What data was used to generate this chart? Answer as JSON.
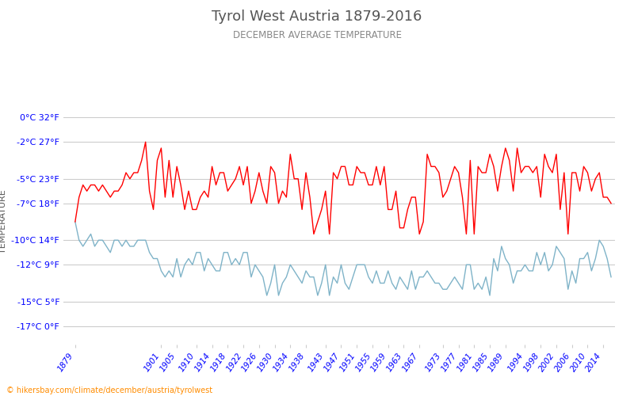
{
  "title": "Tyrol West Austria 1879-2016",
  "subtitle": "DECEMBER AVERAGE TEMPERATURE",
  "ylabel": "TEMPERATURE",
  "xlabel_url": "hikersbay.com/climate/december/austria/tyrolwest",
  "years": [
    1879,
    1880,
    1881,
    1882,
    1883,
    1884,
    1885,
    1886,
    1887,
    1888,
    1889,
    1890,
    1891,
    1892,
    1893,
    1894,
    1895,
    1896,
    1897,
    1898,
    1899,
    1900,
    1901,
    1902,
    1903,
    1904,
    1905,
    1906,
    1907,
    1908,
    1909,
    1910,
    1911,
    1912,
    1913,
    1914,
    1915,
    1916,
    1917,
    1918,
    1919,
    1920,
    1921,
    1922,
    1923,
    1924,
    1925,
    1926,
    1927,
    1928,
    1929,
    1930,
    1931,
    1932,
    1933,
    1934,
    1935,
    1936,
    1937,
    1938,
    1939,
    1940,
    1941,
    1942,
    1943,
    1944,
    1945,
    1946,
    1947,
    1948,
    1949,
    1950,
    1951,
    1952,
    1953,
    1954,
    1955,
    1956,
    1957,
    1958,
    1959,
    1960,
    1961,
    1962,
    1963,
    1964,
    1965,
    1966,
    1967,
    1968,
    1969,
    1970,
    1971,
    1972,
    1973,
    1974,
    1975,
    1976,
    1977,
    1978,
    1979,
    1980,
    1981,
    1982,
    1983,
    1984,
    1985,
    1986,
    1987,
    1988,
    1989,
    1990,
    1991,
    1992,
    1993,
    1994,
    1995,
    1996,
    1997,
    1998,
    1999,
    2000,
    2001,
    2002,
    2003,
    2004,
    2005,
    2006,
    2007,
    2008,
    2009,
    2010,
    2011,
    2012,
    2013,
    2014,
    2015,
    2016
  ],
  "day_temps": [
    -8.5,
    -6.5,
    -5.5,
    -6.0,
    -5.5,
    -5.5,
    -6.0,
    -5.5,
    -6.0,
    -6.5,
    -6.0,
    -6.0,
    -5.5,
    -4.5,
    -5.0,
    -4.5,
    -4.5,
    -3.5,
    -2.0,
    -6.0,
    -7.5,
    -3.5,
    -2.5,
    -6.5,
    -3.5,
    -6.5,
    -4.0,
    -5.5,
    -7.5,
    -6.0,
    -7.5,
    -7.5,
    -6.5,
    -6.0,
    -6.5,
    -4.0,
    -5.5,
    -4.5,
    -4.5,
    -6.0,
    -5.5,
    -5.0,
    -4.0,
    -5.5,
    -4.0,
    -7.0,
    -6.0,
    -4.5,
    -6.0,
    -7.0,
    -4.0,
    -4.5,
    -7.0,
    -6.0,
    -6.5,
    -3.0,
    -5.0,
    -5.0,
    -7.5,
    -4.5,
    -6.5,
    -9.5,
    -8.5,
    -7.5,
    -6.0,
    -9.5,
    -4.5,
    -5.0,
    -4.0,
    -4.0,
    -5.5,
    -5.5,
    -4.0,
    -4.5,
    -4.5,
    -5.5,
    -5.5,
    -4.0,
    -5.5,
    -4.0,
    -7.5,
    -7.5,
    -6.0,
    -9.0,
    -9.0,
    -7.5,
    -6.5,
    -6.5,
    -9.5,
    -8.5,
    -3.0,
    -4.0,
    -4.0,
    -4.5,
    -6.5,
    -6.0,
    -5.0,
    -4.0,
    -4.5,
    -6.5,
    -9.5,
    -3.5,
    -9.5,
    -4.0,
    -4.5,
    -4.5,
    -3.0,
    -4.0,
    -6.0,
    -4.0,
    -2.5,
    -3.5,
    -6.0,
    -2.5,
    -4.5,
    -4.0,
    -4.0,
    -4.5,
    -4.0,
    -6.5,
    -3.0,
    -4.0,
    -4.5,
    -3.0,
    -7.5,
    -4.5,
    -9.5,
    -4.5,
    -4.5,
    -6.0,
    -4.0,
    -4.5,
    -6.0,
    -5.0,
    -4.5,
    -6.5,
    -6.5,
    -7.0
  ],
  "night_temps": [
    -8.5,
    -10.0,
    -10.5,
    -10.0,
    -9.5,
    -10.5,
    -10.0,
    -10.0,
    -10.5,
    -11.0,
    -10.0,
    -10.0,
    -10.5,
    -10.0,
    -10.5,
    -10.5,
    -10.0,
    -10.0,
    -10.0,
    -11.0,
    -11.5,
    -11.5,
    -12.5,
    -13.0,
    -12.5,
    -13.0,
    -11.5,
    -13.0,
    -12.0,
    -11.5,
    -12.0,
    -11.0,
    -11.0,
    -12.5,
    -11.5,
    -12.0,
    -12.5,
    -12.5,
    -11.0,
    -11.0,
    -12.0,
    -11.5,
    -12.0,
    -11.0,
    -11.0,
    -13.0,
    -12.0,
    -12.5,
    -13.0,
    -14.5,
    -13.5,
    -12.0,
    -14.5,
    -13.5,
    -13.0,
    -12.0,
    -12.5,
    -13.0,
    -13.5,
    -12.5,
    -13.0,
    -13.0,
    -14.5,
    -13.5,
    -12.0,
    -14.5,
    -13.0,
    -13.5,
    -12.0,
    -13.5,
    -14.0,
    -13.0,
    -12.0,
    -12.0,
    -12.0,
    -13.0,
    -13.5,
    -12.5,
    -13.5,
    -13.5,
    -12.5,
    -13.5,
    -14.0,
    -13.0,
    -13.5,
    -14.0,
    -12.5,
    -14.0,
    -13.0,
    -13.0,
    -12.5,
    -13.0,
    -13.5,
    -13.5,
    -14.0,
    -14.0,
    -13.5,
    -13.0,
    -13.5,
    -14.0,
    -12.0,
    -12.0,
    -14.0,
    -13.5,
    -14.0,
    -13.0,
    -14.5,
    -11.5,
    -12.5,
    -10.5,
    -11.5,
    -12.0,
    -13.5,
    -12.5,
    -12.5,
    -12.0,
    -12.5,
    -12.5,
    -11.0,
    -12.0,
    -11.0,
    -12.5,
    -12.0,
    -10.5,
    -11.0,
    -11.5,
    -14.0,
    -12.5,
    -13.5,
    -11.5,
    -11.5,
    -11.0,
    -12.5,
    -11.5,
    -10.0,
    -10.5,
    -11.5,
    -13.0
  ],
  "yticks_c": [
    0,
    -2,
    -5,
    -7,
    -10,
    -12,
    -15,
    -17
  ],
  "yticks_f": [
    32,
    27,
    23,
    18,
    14,
    9,
    5,
    0
  ],
  "xticks": [
    1879,
    1901,
    1905,
    1910,
    1914,
    1918,
    1922,
    1926,
    1930,
    1934,
    1938,
    1943,
    1947,
    1951,
    1955,
    1959,
    1963,
    1967,
    1973,
    1977,
    1981,
    1985,
    1989,
    1994,
    1998,
    2002,
    2006,
    2010,
    2014
  ],
  "day_color": "#ff0000",
  "night_color": "#7fb3c8",
  "title_color": "#555555",
  "subtitle_color": "#888888",
  "tick_color": "#0000ff",
  "grid_color": "#cccccc",
  "background_color": "#ffffff",
  "url_color": "#ff8c00",
  "ylim_min": -18.5,
  "ylim_max": 1.5,
  "xlim_min": 1876,
  "xlim_max": 2017
}
